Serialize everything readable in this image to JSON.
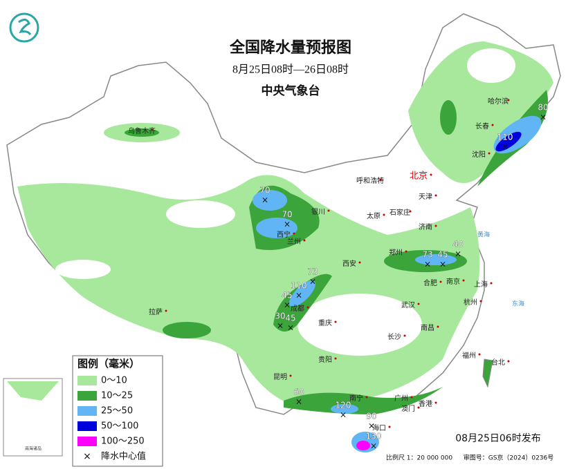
{
  "title": "全国降水量预报图",
  "subtitle": "8月25日08时—26日08时",
  "agency": "中央气象台",
  "legend": {
    "title": "图例（毫米）",
    "items": [
      {
        "label": "0～10",
        "color": "#a8e89c"
      },
      {
        "label": "10～25",
        "color": "#3ba53b"
      },
      {
        "label": "25～50",
        "color": "#62b5f5"
      },
      {
        "label": "50～100",
        "color": "#0000dc"
      },
      {
        "label": "100～250",
        "color": "#ff00ff"
      }
    ],
    "center_label": "降水中心值"
  },
  "cities": [
    "哈尔滨",
    "长春",
    "沈阳",
    "北京",
    "天津",
    "呼和浩特",
    "石家庄",
    "太原",
    "济南",
    "银川",
    "西宁",
    "兰州",
    "郑州",
    "合肥",
    "南京",
    "上海",
    "杭州",
    "西安",
    "成都",
    "重庆",
    "武汉",
    "长沙",
    "南昌",
    "福州",
    "台北",
    "贵阳",
    "昆明",
    "南宁",
    "广州",
    "澳门",
    "香港",
    "海口",
    "拉萨",
    "乌鲁木齐"
  ],
  "seas": [
    "黄海",
    "东海"
  ],
  "rain_centers": [
    80,
    110,
    70,
    70,
    73,
    45,
    40,
    73,
    110,
    45,
    30,
    45,
    60,
    120,
    90,
    130
  ],
  "inset_label": "南海诸岛",
  "issued": "08月25日06时发布",
  "scale": "比例尺 1：20 000 000",
  "review_no": "审图号：GS京（2024）0236号"
}
